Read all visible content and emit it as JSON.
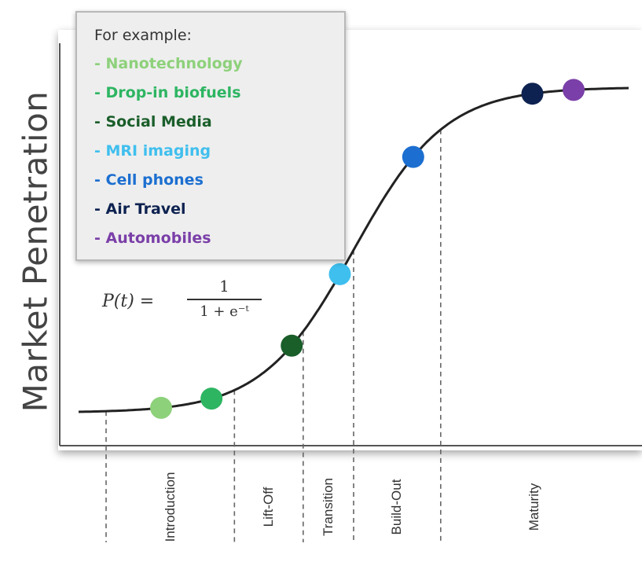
{
  "chart_data": {
    "type": "line",
    "ylabel": "Market Penetration",
    "xlabel": "",
    "formula": {
      "lhs": "P(t) =",
      "numerator": "1",
      "denominator": "1 + e⁻ᵗ"
    },
    "legend": {
      "title": "For example:",
      "placement": "top-left",
      "items": [
        {
          "label": "- Nanotechnology",
          "color": "#8dd17a"
        },
        {
          "label": "- Drop-in biofuels",
          "color": "#2db562"
        },
        {
          "label": "- Social Media",
          "color": "#1a5e2a"
        },
        {
          "label": "- MRI imaging",
          "color": "#3fbfee"
        },
        {
          "label": "- Cell phones",
          "color": "#1c6fd0"
        },
        {
          "label": "- Air Travel",
          "color": "#0d2250"
        },
        {
          "label": "- Automobiles",
          "color": "#7a3fa8"
        }
      ]
    },
    "curve": {
      "function": "logistic",
      "x_range": [
        -6,
        6
      ],
      "color": "#222222"
    },
    "points": [
      {
        "name": "Nanotechnology",
        "t": -4.2,
        "color": "#8dd17a"
      },
      {
        "name": "Drop-in biofuels",
        "t": -3.1,
        "color": "#2db562"
      },
      {
        "name": "Social Media",
        "t": -1.35,
        "color": "#1a5e2a"
      },
      {
        "name": "MRI imaging",
        "t": -0.3,
        "color": "#3fbfee"
      },
      {
        "name": "Cell phones",
        "t": 1.3,
        "color": "#1c6fd0"
      },
      {
        "name": "Air Travel",
        "t": 3.9,
        "color": "#0d2250"
      },
      {
        "name": "Automobiles",
        "t": 4.8,
        "color": "#7a3fa8"
      }
    ],
    "phases": [
      {
        "label": "Introduction",
        "boundary_t": -2.6
      },
      {
        "label": "Lift-Off",
        "boundary_t": -1.1
      },
      {
        "label": "Transition",
        "boundary_t": 0.0
      },
      {
        "label": "Build-Out",
        "boundary_t": 1.9
      },
      {
        "label": "Maturity",
        "boundary_t": null
      }
    ],
    "grid": false
  }
}
